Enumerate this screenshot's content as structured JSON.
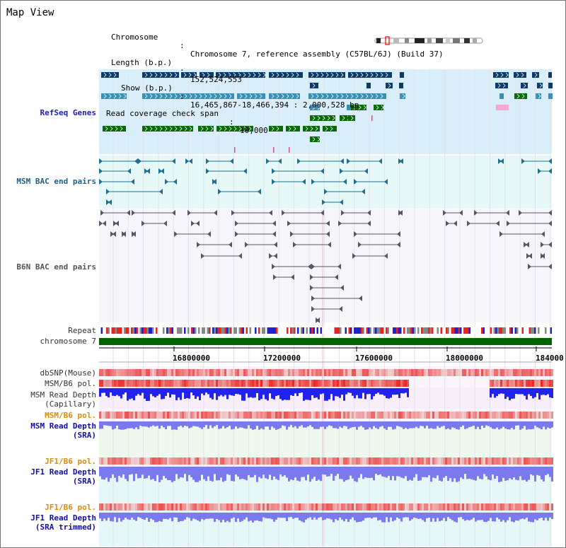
{
  "view": {
    "title": "Map View"
  },
  "header": {
    "chromosome_key": "Chromosome",
    "chromosome_value": "Chromosome 7, reference assembly (C57BL/6J) (Build 37)",
    "length_key": "Length (b.p.)",
    "length_value": "152,524,553",
    "show_key": "Show (b.p.)",
    "show_value": "16,465,867-18,466,394 : 2,000,528 bp",
    "coverage_key": "Read coverage check span",
    "coverage_value": "10,000"
  },
  "tracks": {
    "refseq": "RefSeq Genes",
    "msm_bac": "MSM BAC end pairs",
    "b6n_bac": "B6N BAC end pairs",
    "repeat": "Repeat",
    "chromosome": "chromosome 7",
    "dbsnp": "dbSNP(Mouse)",
    "msm_b6_pol_1": "MSM/B6 pol.",
    "msm_depth_cap_1": "MSM Read Depth",
    "msm_depth_cap_2": "(Capillary)",
    "msm_b6_pol_2": "MSM/B6 pol.",
    "msm_depth_sra_1": "MSM Read Depth",
    "msm_depth_sra_2": "(SRA)",
    "jf1_b6_pol_1": "JF1/B6 pol.",
    "jf1_depth_sra_1": "JF1 Read Depth",
    "jf1_depth_sra_2": "(SRA)",
    "jf1_b6_pol_2": "JF1/B6 pol.",
    "jf1_depth_trim_1": "JF1 Read Depth",
    "jf1_depth_trim_2": "(SRA trimmed)"
  },
  "axis": {
    "ticks": [
      "16800000",
      "17200000",
      "17600000",
      "18000000",
      "184000"
    ]
  },
  "colors": {
    "refseq_bg": "#d9eef9",
    "msm_bg": "#e6f8f8",
    "b6n_bg": "#f6f6fa",
    "chrom_bar": "#006400",
    "gene_navy": "#0c3a6a",
    "gene_teal": "#3a8fb7",
    "gene_green": "#0a6a0a",
    "depth_blue": "#2222ee",
    "depth_violet": "#7a7aee",
    "pol_red": "#ee3333"
  }
}
